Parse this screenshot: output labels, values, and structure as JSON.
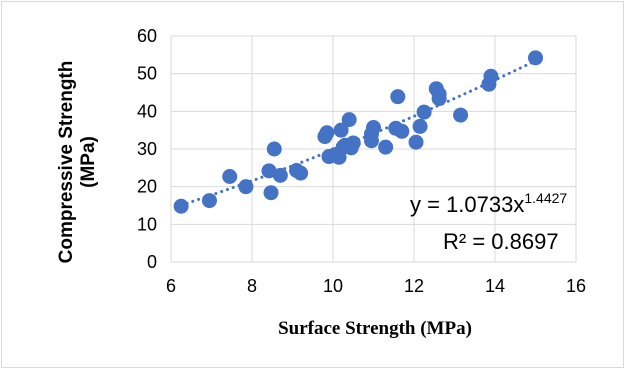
{
  "chart_data": {
    "type": "scatter",
    "xlabel": "Surface Strength (MPa)",
    "ylabel_line1": "Compressive Strength",
    "ylabel_line2": "(MPa)",
    "xlim": [
      6,
      16
    ],
    "ylim": [
      0,
      60
    ],
    "x_ticks": [
      "6",
      "8",
      "10",
      "12",
      "14",
      "16"
    ],
    "y_ticks": [
      "0",
      "10",
      "20",
      "30",
      "40",
      "50",
      "60"
    ],
    "grid": true,
    "marker_color": "#4472C4",
    "trendline": {
      "type": "power",
      "a": 1.0733,
      "b": 1.4427,
      "equation_base": "y = 1.0733x",
      "equation_exponent": "1.4427",
      "r_squared_label": "R² = 0.8697"
    },
    "points": [
      {
        "x": 6.25,
        "y": 14.8
      },
      {
        "x": 6.95,
        "y": 16.3
      },
      {
        "x": 7.45,
        "y": 22.7
      },
      {
        "x": 7.85,
        "y": 20.0
      },
      {
        "x": 8.42,
        "y": 24.2
      },
      {
        "x": 8.47,
        "y": 18.4
      },
      {
        "x": 8.55,
        "y": 30.0
      },
      {
        "x": 8.7,
        "y": 23.0
      },
      {
        "x": 9.1,
        "y": 24.3
      },
      {
        "x": 9.2,
        "y": 23.6
      },
      {
        "x": 9.8,
        "y": 33.3
      },
      {
        "x": 9.85,
        "y": 34.3
      },
      {
        "x": 9.9,
        "y": 28.0
      },
      {
        "x": 10.05,
        "y": 28.5
      },
      {
        "x": 10.15,
        "y": 27.8
      },
      {
        "x": 10.2,
        "y": 35.0
      },
      {
        "x": 10.25,
        "y": 30.5
      },
      {
        "x": 10.3,
        "y": 31.0
      },
      {
        "x": 10.4,
        "y": 37.8
      },
      {
        "x": 10.45,
        "y": 30.3
      },
      {
        "x": 10.5,
        "y": 31.6
      },
      {
        "x": 10.95,
        "y": 34.0
      },
      {
        "x": 10.95,
        "y": 32.2
      },
      {
        "x": 11.0,
        "y": 35.7
      },
      {
        "x": 11.3,
        "y": 30.5
      },
      {
        "x": 11.55,
        "y": 35.5
      },
      {
        "x": 11.6,
        "y": 43.9
      },
      {
        "x": 11.7,
        "y": 34.7
      },
      {
        "x": 12.05,
        "y": 31.8
      },
      {
        "x": 12.15,
        "y": 36.0
      },
      {
        "x": 12.25,
        "y": 39.8
      },
      {
        "x": 12.55,
        "y": 46.0
      },
      {
        "x": 12.62,
        "y": 44.6
      },
      {
        "x": 12.62,
        "y": 43.4
      },
      {
        "x": 13.15,
        "y": 39.0
      },
      {
        "x": 13.85,
        "y": 47.2
      },
      {
        "x": 13.9,
        "y": 49.3
      },
      {
        "x": 15.0,
        "y": 54.2
      }
    ]
  }
}
